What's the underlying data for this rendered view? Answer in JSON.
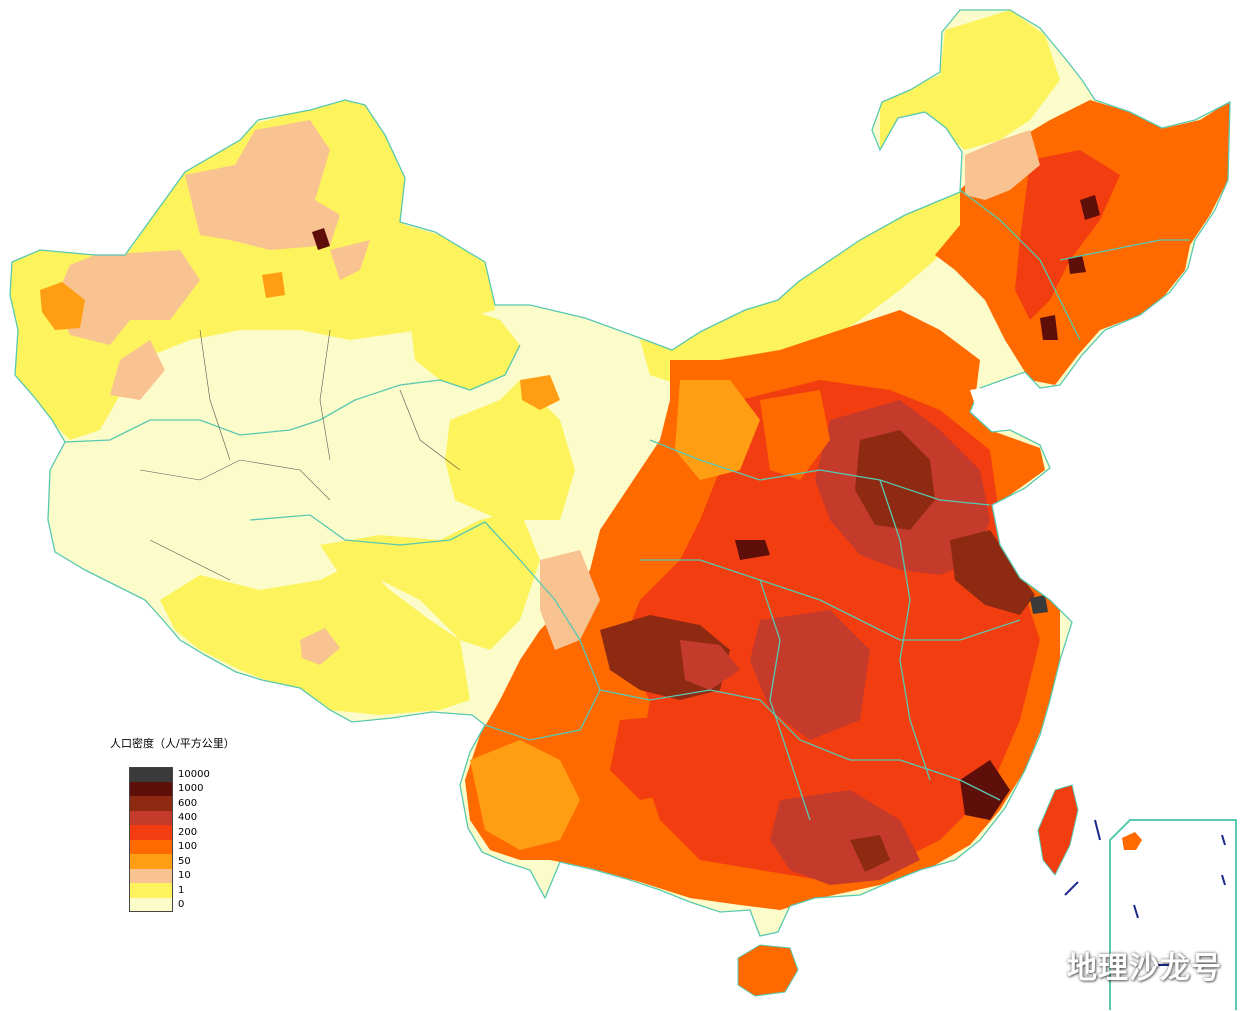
{
  "legend": {
    "title": "人口密度（人/平方公里）",
    "classes": [
      {
        "label": "10000",
        "color": "#3a3a3a"
      },
      {
        "label": "1000",
        "color": "#5e0f0a"
      },
      {
        "label": "600",
        "color": "#8e2a12"
      },
      {
        "label": "400",
        "color": "#c43b2c"
      },
      {
        "label": "200",
        "color": "#f23d10"
      },
      {
        "label": "100",
        "color": "#ff6a00"
      },
      {
        "label": "50",
        "color": "#ff9e12"
      },
      {
        "label": "10",
        "color": "#f9c291"
      },
      {
        "label": "1",
        "color": "#fdf35c"
      },
      {
        "label": "0",
        "color": "#fcfccb"
      }
    ]
  },
  "colors": {
    "province_border": "#58c8b0",
    "county_border": "#555555",
    "background": "#ffffff"
  },
  "watermark": "地理沙龙号"
}
